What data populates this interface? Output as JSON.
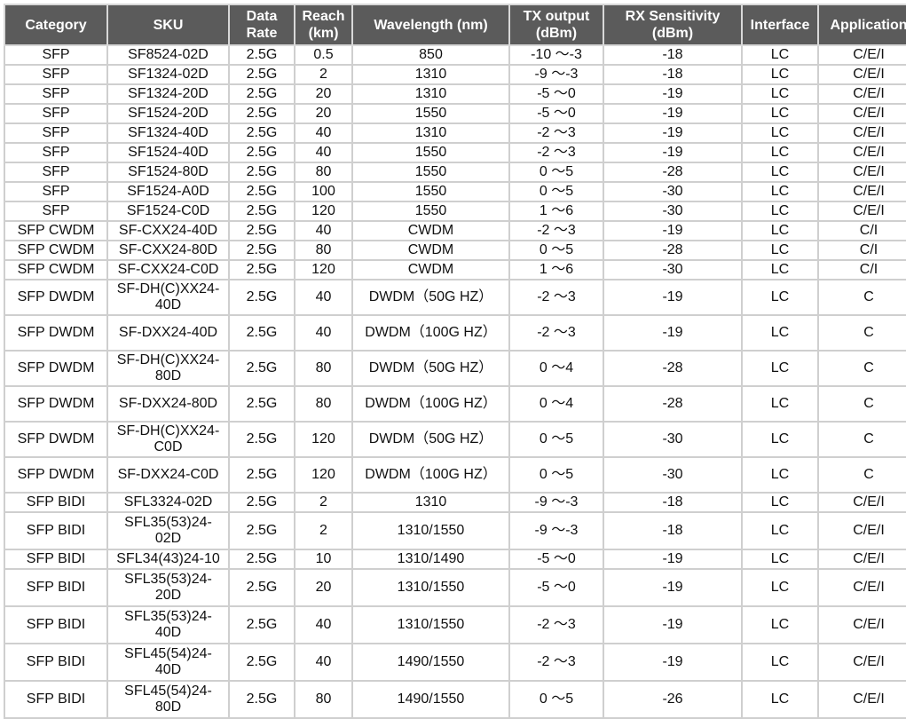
{
  "headers": [
    "Category",
    "SKU",
    "Data Rate",
    "Reach (km)",
    "Wavelength (nm)",
    "TX output (dBm)",
    "RX Sensitivity (dBm)",
    "Interface",
    "Application"
  ],
  "header_bg": "#5b5b5b",
  "rows": [
    [
      "SFP",
      "SF8524-02D",
      "2.5G",
      "0.5",
      "850",
      "-10 ～-3",
      "-18",
      "LC",
      "C/E/I"
    ],
    [
      "SFP",
      "SF1324-02D",
      "2.5G",
      "2",
      "1310",
      "-9 ～-3",
      "-18",
      "LC",
      "C/E/I"
    ],
    [
      "SFP",
      "SF1324-20D",
      "2.5G",
      "20",
      "1310",
      "-5 ～0",
      "-19",
      "LC",
      "C/E/I"
    ],
    [
      "SFP",
      "SF1524-20D",
      "2.5G",
      "20",
      "1550",
      "-5 ～0",
      "-19",
      "LC",
      "C/E/I"
    ],
    [
      "SFP",
      "SF1324-40D",
      "2.5G",
      "40",
      "1310",
      "-2 ～3",
      "-19",
      "LC",
      "C/E/I"
    ],
    [
      "SFP",
      "SF1524-40D",
      "2.5G",
      "40",
      "1550",
      "-2 ～3",
      "-19",
      "LC",
      "C/E/I"
    ],
    [
      "SFP",
      "SF1524-80D",
      "2.5G",
      "80",
      "1550",
      "0 ～5",
      "-28",
      "LC",
      "C/E/I"
    ],
    [
      "SFP",
      "SF1524-A0D",
      "2.5G",
      "100",
      "1550",
      "0 ～5",
      "-30",
      "LC",
      "C/E/I"
    ],
    [
      "SFP",
      "SF1524-C0D",
      "2.5G",
      "120",
      "1550",
      "1 ～6",
      "-30",
      "LC",
      "C/E/I"
    ],
    [
      "SFP CWDM",
      "SF-CXX24-40D",
      "2.5G",
      "40",
      "CWDM",
      "-2 ～3",
      "-19",
      "LC",
      "C/I"
    ],
    [
      "SFP CWDM",
      "SF-CXX24-80D",
      "2.5G",
      "80",
      "CWDM",
      "0 ～5",
      "-28",
      "LC",
      "C/I"
    ],
    [
      "SFP CWDM",
      "SF-CXX24-C0D",
      "2.5G",
      "120",
      "CWDM",
      "1 ～6",
      "-30",
      "LC",
      "C/I"
    ],
    [
      "SFP DWDM",
      "SF-DH(C)XX24-40D",
      "2.5G",
      "40",
      "DWDM（50G HZ）",
      "-2 ～3",
      "-19",
      "LC",
      "C"
    ],
    [
      "SFP DWDM",
      "SF-DXX24-40D",
      "2.5G",
      "40",
      "DWDM（100G HZ）",
      "-2 ～3",
      "-19",
      "LC",
      "C"
    ],
    [
      "SFP DWDM",
      "SF-DH(C)XX24-80D",
      "2.5G",
      "80",
      "DWDM（50G HZ）",
      "0 ～4",
      "-28",
      "LC",
      "C"
    ],
    [
      "SFP DWDM",
      "SF-DXX24-80D",
      "2.5G",
      "80",
      "DWDM（100G HZ）",
      "0 ～4",
      "-28",
      "LC",
      "C"
    ],
    [
      "SFP DWDM",
      "SF-DH(C)XX24-C0D",
      "2.5G",
      "120",
      "DWDM（50G HZ）",
      "0 ～5",
      "-30",
      "LC",
      "C"
    ],
    [
      "SFP DWDM",
      "SF-DXX24-C0D",
      "2.5G",
      "120",
      "DWDM（100G HZ）",
      "0 ～5",
      "-30",
      "LC",
      "C"
    ],
    [
      "SFP BIDI",
      "SFL3324-02D",
      "2.5G",
      "2",
      "1310",
      "-9 ～-3",
      "-18",
      "LC",
      "C/E/I"
    ],
    [
      "SFP BIDI",
      "SFL35(53)24-02D",
      "2.5G",
      "2",
      "1310/1550",
      "-9 ～-3",
      "-18",
      "LC",
      "C/E/I"
    ],
    [
      "SFP BIDI",
      "SFL34(43)24-10",
      "2.5G",
      "10",
      "1310/1490",
      "-5 ～0",
      "-19",
      "LC",
      "C/E/I"
    ],
    [
      "SFP BIDI",
      "SFL35(53)24-20D",
      "2.5G",
      "20",
      "1310/1550",
      "-5 ～0",
      "-19",
      "LC",
      "C/E/I"
    ],
    [
      "SFP BIDI",
      "SFL35(53)24-40D",
      "2.5G",
      "40",
      "1310/1550",
      "-2 ～3",
      "-19",
      "LC",
      "C/E/I"
    ],
    [
      "SFP BIDI",
      "SFL45(54)24-40D",
      "2.5G",
      "40",
      "1490/1550",
      "-2 ～3",
      "-19",
      "LC",
      "C/E/I"
    ],
    [
      "SFP BIDI",
      "SFL45(54)24-80D",
      "2.5G",
      "80",
      "1490/1550",
      "0 ～5",
      "-26",
      "LC",
      "C/E/I"
    ]
  ]
}
